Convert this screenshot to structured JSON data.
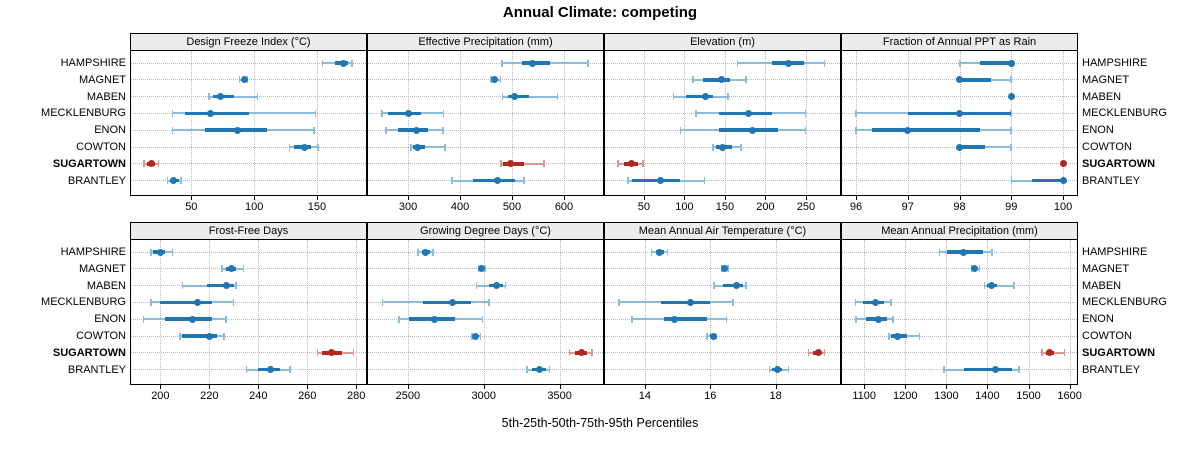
{
  "title": "Annual Climate: competing",
  "xlabel": "5th-25th-50th-75th-95th Percentiles",
  "percentile_labels": [
    "5th",
    "25th",
    "50th",
    "75th",
    "95th"
  ],
  "locations": [
    "HAMPSHIRE",
    "MAGNET",
    "MABEN",
    "MECKLENBURG",
    "ENON",
    "COWTON",
    "SUGARTOWN",
    "BRANTLEY"
  ],
  "highlight_location": "SUGARTOWN",
  "colors": {
    "main": "#1f77b4",
    "whisker": "#8bbcdc",
    "highlight_main": "#b02824",
    "highlight_whisker": "#dc9790",
    "strip_bg": "#ececec",
    "grid": "#b9b9b9"
  },
  "chart_data": [
    {
      "type": "dotplot",
      "title": "Design Freeze Index (°C)",
      "row": 0,
      "col": 0,
      "xlim": [
        2,
        189
      ],
      "ticks": [
        50,
        100,
        150
      ],
      "series": [
        {
          "name": "HAMPSHIRE",
          "p": [
            154,
            164,
            171,
            175,
            178
          ]
        },
        {
          "name": "MAGNET",
          "p": [
            88,
            90,
            92,
            94,
            95
          ]
        },
        {
          "name": "MABEN",
          "p": [
            64,
            67,
            73,
            84,
            103
          ]
        },
        {
          "name": "MECKLENBURG",
          "p": [
            35,
            45,
            65,
            96,
            149
          ]
        },
        {
          "name": "ENON",
          "p": [
            35,
            61,
            87,
            110,
            148
          ]
        },
        {
          "name": "COWTON",
          "p": [
            128,
            132,
            140,
            145,
            151
          ]
        },
        {
          "name": "SUGARTOWN",
          "p": [
            12,
            15,
            18,
            21,
            24
          ]
        },
        {
          "name": "BRANTLEY",
          "p": [
            31,
            33,
            36,
            40,
            42
          ]
        }
      ]
    },
    {
      "type": "dotplot",
      "title": "Effective Precipitation (mm)",
      "row": 0,
      "col": 1,
      "xlim": [
        223,
        675
      ],
      "ticks": [
        300,
        400,
        500,
        600
      ],
      "series": [
        {
          "name": "HAMPSHIRE",
          "p": [
            480,
            519,
            540,
            573,
            647
          ]
        },
        {
          "name": "MAGNET",
          "p": [
            459,
            463,
            467,
            472,
            478
          ]
        },
        {
          "name": "MABEN",
          "p": [
            481,
            492,
            504,
            533,
            588
          ]
        },
        {
          "name": "MECKLENBURG",
          "p": [
            249,
            262,
            300,
            325,
            369
          ]
        },
        {
          "name": "ENON",
          "p": [
            257,
            281,
            317,
            338,
            368
          ]
        },
        {
          "name": "COWTON",
          "p": [
            305,
            310,
            319,
            332,
            372
          ]
        },
        {
          "name": "SUGARTOWN",
          "p": [
            478,
            482,
            498,
            524,
            562
          ]
        },
        {
          "name": "BRANTLEY",
          "p": [
            384,
            424,
            473,
            505,
            524
          ]
        }
      ]
    },
    {
      "type": "dotplot",
      "title": "Elevation (m)",
      "row": 0,
      "col": 2,
      "xlim": [
        2,
        292
      ],
      "ticks": [
        50,
        100,
        150,
        200,
        250
      ],
      "series": [
        {
          "name": "HAMPSHIRE",
          "p": [
            165,
            208,
            229,
            248,
            273
          ]
        },
        {
          "name": "MAGNET",
          "p": [
            110,
            123,
            146,
            156,
            176
          ]
        },
        {
          "name": "MABEN",
          "p": [
            86,
            102,
            126,
            135,
            154
          ]
        },
        {
          "name": "MECKLENBURG",
          "p": [
            114,
            143,
            179,
            208,
            250
          ]
        },
        {
          "name": "ENON",
          "p": [
            95,
            143,
            184,
            216,
            250
          ]
        },
        {
          "name": "COWTON",
          "p": [
            135,
            139,
            147,
            159,
            170
          ]
        },
        {
          "name": "SUGARTOWN",
          "p": [
            18,
            25,
            35,
            43,
            49
          ]
        },
        {
          "name": "BRANTLEY",
          "p": [
            30,
            35,
            70,
            94,
            125
          ]
        }
      ]
    },
    {
      "type": "dotplot",
      "title": "Fraction of Annual PPT as Rain",
      "row": 0,
      "col": 3,
      "xlim": [
        95.73,
        100.27
      ],
      "ticks": [
        96,
        97,
        98,
        99,
        100
      ],
      "series": [
        {
          "name": "HAMPSHIRE",
          "p": [
            98,
            98.4,
            99,
            99,
            99
          ]
        },
        {
          "name": "MAGNET",
          "p": [
            98,
            98,
            98,
            98.6,
            99
          ]
        },
        {
          "name": "MABEN",
          "p": [
            99,
            99,
            99,
            99,
            99
          ]
        },
        {
          "name": "MECKLENBURG",
          "p": [
            96,
            97,
            98,
            99,
            99
          ]
        },
        {
          "name": "ENON",
          "p": [
            96,
            96.3,
            97,
            98.4,
            99
          ]
        },
        {
          "name": "COWTON",
          "p": [
            98,
            98,
            98,
            98.5,
            99
          ]
        },
        {
          "name": "SUGARTOWN",
          "p": [
            100,
            100,
            100,
            100,
            100
          ]
        },
        {
          "name": "BRANTLEY",
          "p": [
            99,
            99.4,
            100,
            100,
            100
          ]
        }
      ]
    },
    {
      "type": "dotplot",
      "title": "Frost-Free Days",
      "row": 1,
      "col": 0,
      "xlim": [
        188,
        284
      ],
      "ticks": [
        200,
        220,
        240,
        260,
        280
      ],
      "series": [
        {
          "name": "HAMPSHIRE",
          "p": [
            196,
            197,
            200,
            202,
            205
          ]
        },
        {
          "name": "MAGNET",
          "p": [
            225,
            227,
            229,
            231,
            234
          ]
        },
        {
          "name": "MABEN",
          "p": [
            209,
            219,
            227,
            230,
            231
          ]
        },
        {
          "name": "MECKLENBURG",
          "p": [
            196,
            200,
            215,
            221,
            230
          ]
        },
        {
          "name": "ENON",
          "p": [
            193,
            202,
            213,
            221,
            227
          ]
        },
        {
          "name": "COWTON",
          "p": [
            208,
            209,
            220,
            223,
            226
          ]
        },
        {
          "name": "SUGARTOWN",
          "p": [
            264,
            266,
            270,
            274,
            279
          ]
        },
        {
          "name": "BRANTLEY",
          "p": [
            235,
            240,
            245,
            249,
            253
          ]
        }
      ]
    },
    {
      "type": "dotplot",
      "title": "Growing Degree Days (°C)",
      "row": 1,
      "col": 1,
      "xlim": [
        2237,
        3786
      ],
      "ticks": [
        2500,
        3000,
        3500
      ],
      "series": [
        {
          "name": "HAMPSHIRE",
          "p": [
            2565,
            2590,
            2617,
            2645,
            2667
          ]
        },
        {
          "name": "MAGNET",
          "p": [
            2965,
            2975,
            2987,
            3000,
            3009
          ]
        },
        {
          "name": "MABEN",
          "p": [
            2950,
            3037,
            3087,
            3124,
            3146
          ]
        },
        {
          "name": "MECKLENBURG",
          "p": [
            2330,
            2602,
            2791,
            2917,
            3037
          ]
        },
        {
          "name": "ENON",
          "p": [
            2439,
            2504,
            2674,
            2809,
            2993
          ]
        },
        {
          "name": "COWTON",
          "p": [
            2922,
            2935,
            2948,
            2965,
            2980
          ]
        },
        {
          "name": "SUGARTOWN",
          "p": [
            3565,
            3600,
            3641,
            3680,
            3716
          ]
        },
        {
          "name": "BRANTLEY",
          "p": [
            3284,
            3320,
            3366,
            3410,
            3435
          ]
        }
      ]
    },
    {
      "type": "dotplot",
      "title": "Mean Annual Air Temperature (°C)",
      "row": 1,
      "col": 2,
      "xlim": [
        12.78,
        19.97
      ],
      "ticks": [
        14,
        16,
        18
      ],
      "series": [
        {
          "name": "HAMPSHIRE",
          "p": [
            14.2,
            14.35,
            14.45,
            14.6,
            14.7
          ]
        },
        {
          "name": "MAGNET",
          "p": [
            16.35,
            16.4,
            16.45,
            16.5,
            16.55
          ]
        },
        {
          "name": "MABEN",
          "p": [
            16.1,
            16.4,
            16.8,
            17.0,
            17.1
          ]
        },
        {
          "name": "MECKLENBURG",
          "p": [
            13.2,
            14.5,
            15.4,
            16.0,
            16.7
          ]
        },
        {
          "name": "ENON",
          "p": [
            13.6,
            14.6,
            14.9,
            15.9,
            16.5
          ]
        },
        {
          "name": "COWTON",
          "p": [
            15.9,
            16.0,
            16.1,
            16.15,
            16.2
          ]
        },
        {
          "name": "SUGARTOWN",
          "p": [
            19.0,
            19.15,
            19.3,
            19.4,
            19.5
          ]
        },
        {
          "name": "BRANTLEY",
          "p": [
            17.8,
            17.9,
            18.05,
            18.2,
            18.4
          ]
        }
      ]
    },
    {
      "type": "dotplot",
      "title": "Mean Annual Precipitation (mm)",
      "row": 1,
      "col": 3,
      "xlim": [
        1046,
        1618
      ],
      "ticks": [
        1100,
        1200,
        1300,
        1400,
        1500,
        1600
      ],
      "series": [
        {
          "name": "HAMPSHIRE",
          "p": [
            1283,
            1302,
            1342,
            1390,
            1412
          ]
        },
        {
          "name": "MAGNET",
          "p": [
            1360,
            1364,
            1369,
            1375,
            1381
          ]
        },
        {
          "name": "MABEN",
          "p": [
            1392,
            1398,
            1410,
            1423,
            1465
          ]
        },
        {
          "name": "MECKLENBURG",
          "p": [
            1078,
            1096,
            1128,
            1148,
            1166
          ]
        },
        {
          "name": "ENON",
          "p": [
            1080,
            1104,
            1136,
            1156,
            1171
          ]
        },
        {
          "name": "COWTON",
          "p": [
            1160,
            1166,
            1182,
            1204,
            1235
          ]
        },
        {
          "name": "SUGARTOWN",
          "p": [
            1532,
            1542,
            1551,
            1562,
            1588
          ]
        },
        {
          "name": "BRANTLEY",
          "p": [
            1294,
            1343,
            1420,
            1460,
            1478
          ]
        }
      ]
    }
  ]
}
